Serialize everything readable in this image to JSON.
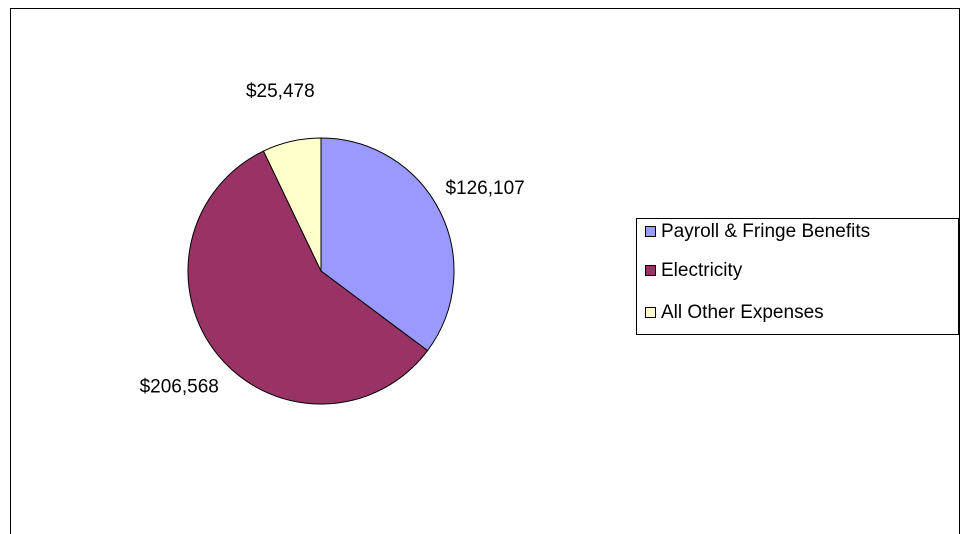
{
  "chart_data": {
    "type": "pie",
    "categories": [
      "Payroll & Fringe Benefits",
      "Electricity",
      "All Other Expenses"
    ],
    "values": [
      126107,
      206568,
      25478
    ],
    "value_labels": [
      "$126,107",
      "$206,568",
      "$25,478"
    ],
    "colors": [
      "#9999ff",
      "#993366",
      "#ffffcc"
    ],
    "legend": "right"
  }
}
